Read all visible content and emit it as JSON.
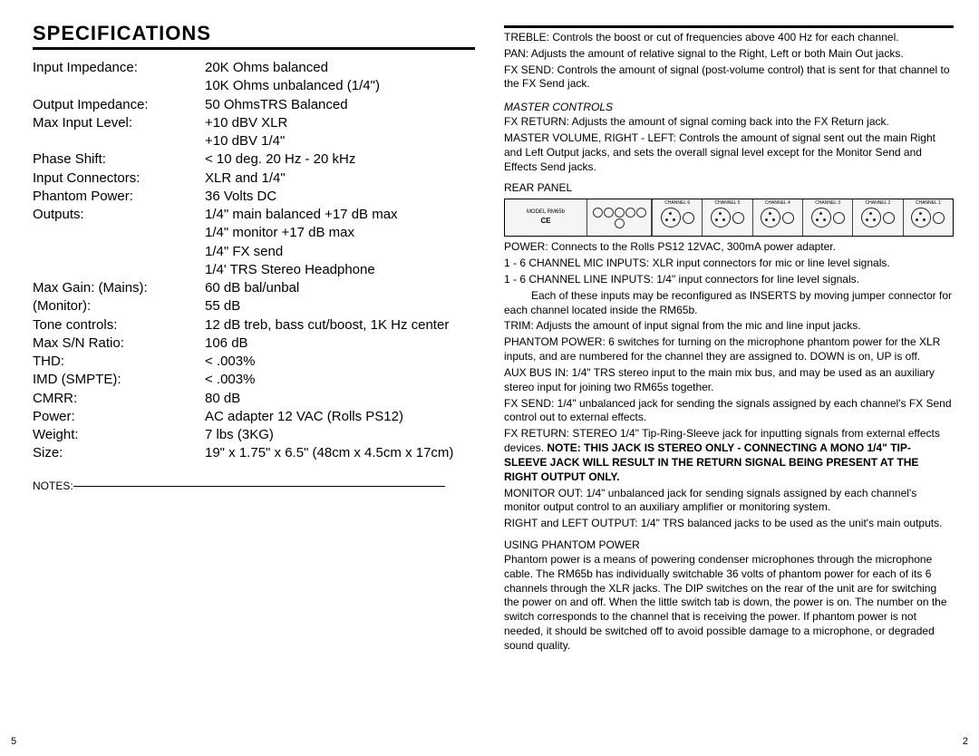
{
  "left": {
    "title": "SPECIFICATIONS",
    "specs": [
      {
        "label": "Input Impedance:",
        "value": "20K Ohms balanced",
        "cont": [
          "10K Ohms unbalanced (1/4\")"
        ]
      },
      {
        "label": "Output Impedance:",
        "value": "50 OhmsTRS Balanced"
      },
      {
        "label": "Max Input Level:",
        "value": "+10 dBV XLR",
        "cont": [
          "+10 dBV 1/4\""
        ]
      },
      {
        "label": "Phase Shift:",
        "value": "< 10 deg. 20 Hz - 20 kHz"
      },
      {
        "label": "Input Connectors:",
        "value": "XLR and 1/4\""
      },
      {
        "label": "Phantom Power:",
        "value": "36 Volts DC"
      },
      {
        "label": "Outputs:",
        "value": "1/4\" main balanced +17 dB max",
        "cont": [
          "1/4\" monitor +17 dB max",
          "1/4\" FX send",
          "1/4' TRS Stereo Headphone"
        ]
      },
      {
        "label": "Max Gain: (Mains):",
        "value": "60 dB bal/unbal"
      },
      {
        "label": "(Monitor):",
        "value": "55 dB"
      },
      {
        "label": "Tone controls:",
        "value": "12 dB treb, bass cut/boost, 1K Hz center"
      },
      {
        "label": "Max S/N Ratio:",
        "value": "106 dB"
      },
      {
        "label": "THD:",
        "value": "< .003%"
      },
      {
        "label": "IMD (SMPTE):",
        "value": "< .003%"
      },
      {
        "label": "CMRR:",
        "value": "80 dB"
      },
      {
        "label": "Power:",
        "value": "AC adapter 12 VAC (Rolls PS12)"
      },
      {
        "label": "Weight:",
        "value": "7 lbs (3KG)"
      },
      {
        "label": "Size:",
        "value": "19\" x 1.75\" x 6.5\" (48cm x 4.5cm x 17cm)"
      }
    ],
    "notes_label": "NOTES:",
    "page_num": "5"
  },
  "right": {
    "top_paras": [
      "TREBLE: Controls the boost or cut of frequencies above 400 Hz for each channel.",
      "PAN: Adjusts the amount of relative signal to the Right, Left or both Main Out jacks.",
      "FX SEND: Controls the amount of signal (post-volume control) that is sent for that channel to the FX Send jack."
    ],
    "master_heading": "MASTER CONTROLS",
    "master_paras": [
      "FX RETURN: Adjusts the amount of signal coming back into the FX Return jack.",
      "MASTER VOLUME, RIGHT - LEFT: Controls the amount of signal sent out the main Right and Left Output jacks, and sets the overall signal level except for the Monitor Send and Effects Send jacks."
    ],
    "rear_panel_heading": "REAR PANEL",
    "channels": [
      "CHANNEL 6",
      "CHANNEL 5",
      "CHANNEL 4",
      "CHANNEL 3",
      "CHANNEL 2",
      "CHANNEL 1"
    ],
    "rear_paras": [
      "POWER: Connects to the Rolls PS12 12VAC, 300mA power adapter.",
      "1 - 6 CHANNEL MIC INPUTS: XLR input connectors for mic or line level signals.",
      "1 - 6 CHANNEL LINE INPUTS: 1/4\" input connectors for line level signals."
    ],
    "rear_indent": "Each of these inputs may be reconfigured as INSERTS by moving jumper connector for each channel located inside the RM65b.",
    "rear_paras2": [
      "TRIM: Adjusts the amount of input signal from the mic and line input jacks.",
      "PHANTOM POWER: 6 switches for turning on the microphone phantom power for the XLR inputs, and are numbered for the channel they are assigned to. DOWN is on, UP is off.",
      "AUX BUS IN: 1/4\" TRS stereo input to the main mix bus, and may be used as an auxiliary stereo input for joining two RM65s together.",
      "FX SEND: 1/4\" unbalanced jack for sending the signals assigned by each channel's FX Send control out to external effects."
    ],
    "fx_return_pre": "FX RETURN: STEREO 1/4\" Tip-Ring-Sleeve jack for inputting signals from external effects devices. ",
    "fx_return_bold": "NOTE: THIS JACK IS STEREO ONLY - CONNECTING A MONO 1/4\" TIP-SLEEVE JACK WILL RESULT IN THE RETURN SIGNAL BEING PRESENT AT THE RIGHT OUTPUT ONLY.",
    "rear_paras3": [
      "MONITOR OUT: 1/4\" unbalanced jack for sending signals assigned by each channel's monitor output control to an auxiliary amplifier or monitoring system.",
      "RIGHT and LEFT OUTPUT: 1/4\" TRS balanced jacks to be used as the unit's main outputs."
    ],
    "phantom_heading": "USING PHANTOM POWER",
    "phantom_para": "Phantom power is a means of powering condenser microphones through the microphone cable. The RM65b has individually switchable 36 volts of phantom power for each of its 6 channels through the XLR jacks. The DIP switches on the rear of the unit are for switching the power on and off. When the little switch tab is down, the power is on. The number on the switch corresponds to the channel that is receiving the power. If phantom power is not needed, it should be switched off to avoid possible damage to a microphone, or degraded sound quality.",
    "page_num": "2"
  }
}
